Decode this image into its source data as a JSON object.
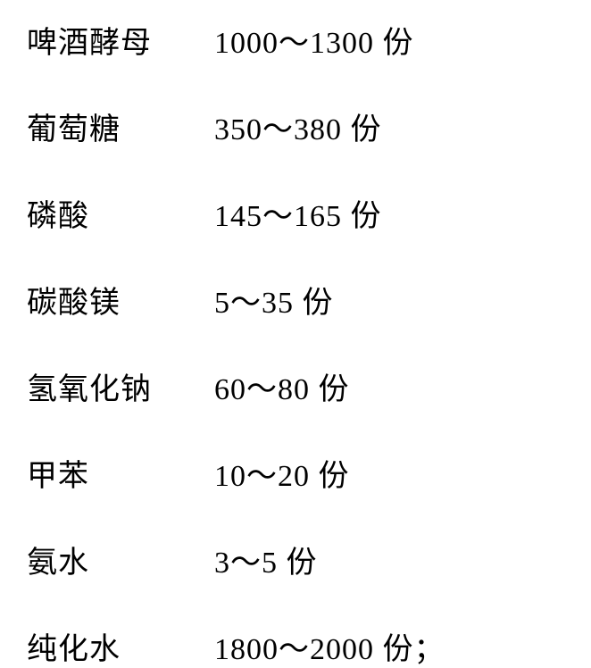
{
  "table": {
    "rows": [
      {
        "name": "啤酒酵母",
        "amount": "1000～1300 份"
      },
      {
        "name": "葡萄糖",
        "amount": "350～380 份"
      },
      {
        "name": "磷酸",
        "amount": "145～165 份"
      },
      {
        "name": "碳酸镁",
        "amount": "5～35 份"
      },
      {
        "name": "氢氧化钠",
        "amount": "60～80 份"
      },
      {
        "name": "甲苯",
        "amount": "10～20 份"
      },
      {
        "name": "氨水",
        "amount": "3～5 份"
      },
      {
        "name": "纯化水",
        "amount": "1800～2000 份；"
      }
    ],
    "styling": {
      "background_color": "#ffffff",
      "text_color": "#000000",
      "font_size": 34,
      "font_family": "SimSun",
      "name_column_width": 210,
      "row_spacing": 48
    }
  }
}
